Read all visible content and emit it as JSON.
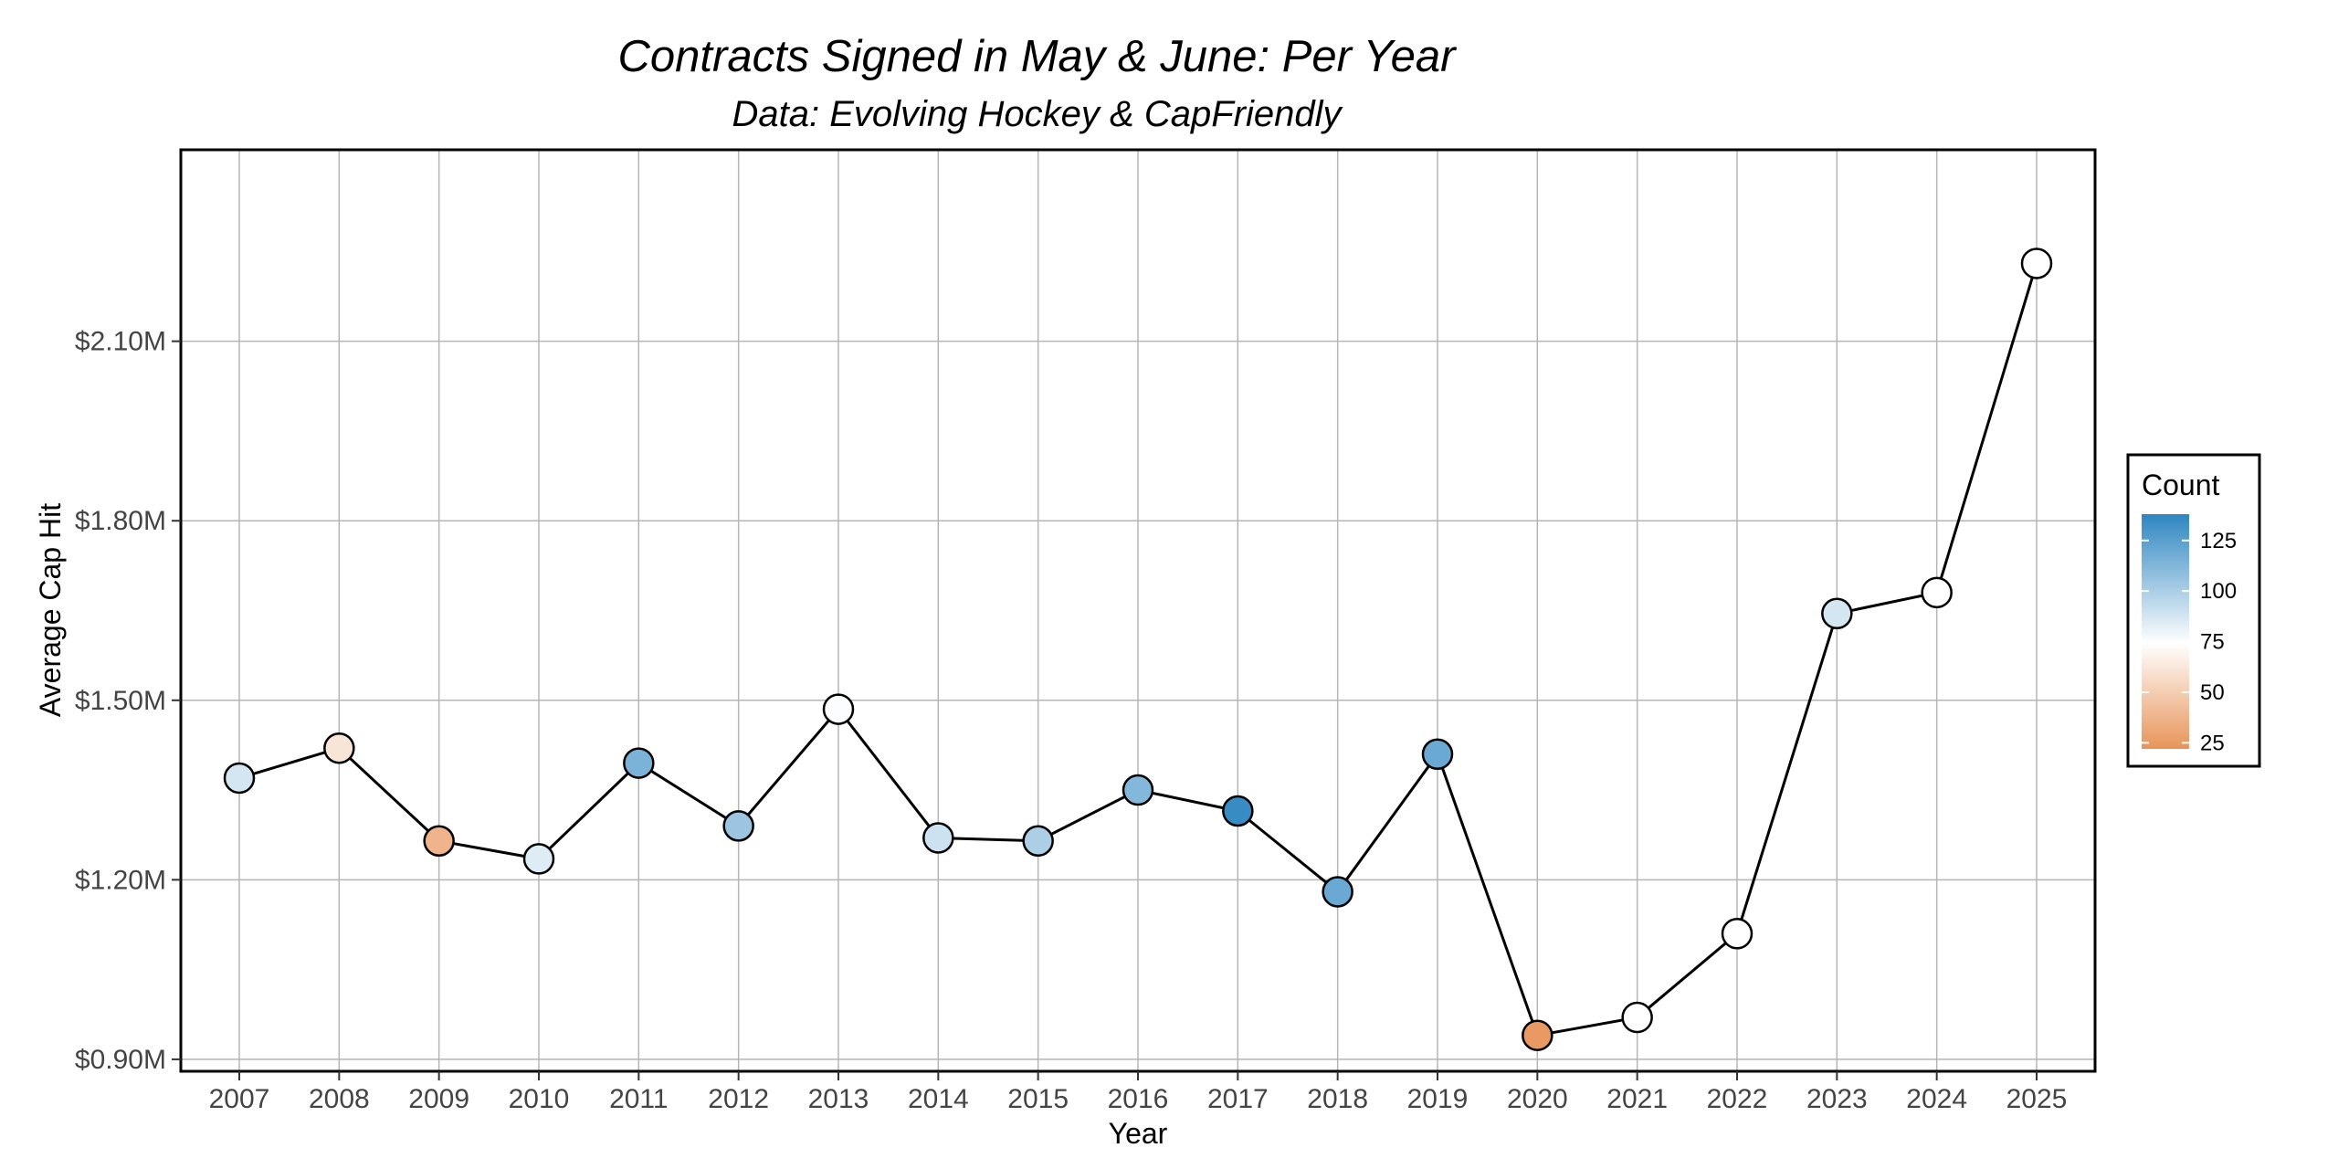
{
  "chart_data": {
    "type": "line",
    "title": "Contracts Signed in May & June: Per Year",
    "subtitle": "Data: Evolving Hockey & CapFriendly",
    "xlabel": "Year",
    "ylabel": "Average Cap Hit",
    "x": [
      2007,
      2008,
      2009,
      2010,
      2011,
      2012,
      2013,
      2014,
      2015,
      2016,
      2017,
      2018,
      2019,
      2020,
      2021,
      2022,
      2023,
      2024,
      2025
    ],
    "x_tick_labels": [
      "2007",
      "2008",
      "2009",
      "2010",
      "2011",
      "2012",
      "2013",
      "2014",
      "2015",
      "2016",
      "2017",
      "2018",
      "2019",
      "2020",
      "2021",
      "2022",
      "2023",
      "2024",
      "2025"
    ],
    "y": [
      1.37,
      1.42,
      1.265,
      1.235,
      1.395,
      1.29,
      1.485,
      1.27,
      1.265,
      1.35,
      1.315,
      1.18,
      1.41,
      0.94,
      0.97,
      1.11,
      1.645,
      1.68,
      2.23
    ],
    "count": [
      88,
      62,
      38,
      85,
      115,
      105,
      76,
      90,
      100,
      112,
      135,
      120,
      120,
      25,
      75,
      75,
      88,
      75,
      75
    ],
    "ylim": [
      0.88,
      2.42
    ],
    "y_ticks": [
      0.9,
      1.2,
      1.5,
      1.8,
      2.1
    ],
    "y_tick_labels": [
      "$0.90M",
      "$1.20M",
      "$1.50M",
      "$1.80M",
      "$2.10M"
    ],
    "grid": true,
    "legend": {
      "title": "Count",
      "placement": "right",
      "ticks": [
        25,
        50,
        75,
        100,
        125
      ],
      "tick_labels": [
        "25",
        "50",
        "75",
        "100",
        "125"
      ],
      "range": [
        22,
        138
      ],
      "colors": {
        "low": "#e8945a",
        "mid": "#ffffff",
        "high": "#2e86c1"
      },
      "midpoint": 75
    },
    "colors": {
      "line": "#000000",
      "point_stroke": "#000000",
      "grid": "#b5b5b5",
      "panel_border": "#000000"
    }
  }
}
